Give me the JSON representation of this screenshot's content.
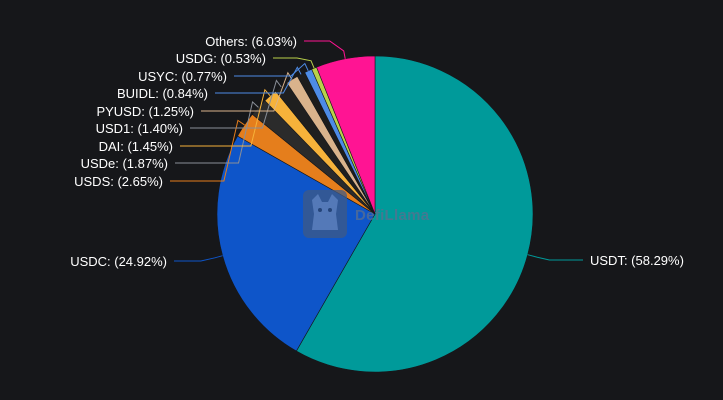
{
  "chart_data": {
    "type": "pie",
    "title": "",
    "slices": [
      {
        "name": "USDT",
        "value": 58.29,
        "color": "#009a9a"
      },
      {
        "name": "USDC",
        "value": 24.92,
        "color": "#0e55c9"
      },
      {
        "name": "USDS",
        "value": 2.65,
        "color": "#e57e1c"
      },
      {
        "name": "USDe",
        "value": 1.87,
        "color": "#2b2b2b"
      },
      {
        "name": "DAI",
        "value": 1.45,
        "color": "#f6b23a"
      },
      {
        "name": "USD1",
        "value": 1.4,
        "color": "#1f1f1f"
      },
      {
        "name": "PYUSD",
        "value": 1.25,
        "color": "#d9b38c"
      },
      {
        "name": "BUIDL",
        "value": 0.84,
        "color": "#1c1c1c"
      },
      {
        "name": "USYC",
        "value": 0.77,
        "color": "#4d8be6"
      },
      {
        "name": "USDG",
        "value": 0.53,
        "color": "#b9d14a"
      },
      {
        "name": "Others",
        "value": 6.03,
        "color": "#ff1493"
      }
    ],
    "labels": [
      "USDT: (58.29%)",
      "USDC: (24.92%)",
      "USDS: (2.65%)",
      "USDe: (1.87%)",
      "DAI: (1.45%)",
      "USD1: (1.40%)",
      "PYUSD: (1.25%)",
      "BUIDL: (0.84%)",
      "USYC: (0.77%)",
      "USDG: (0.53%)",
      "Others: (6.03%)"
    ],
    "leader_colors": [
      "#009a9a",
      "#0e55c9",
      "#e57e1c",
      "#8a8f98",
      "#f6b23a",
      "#8a8f98",
      "#d9b38c",
      "#4d8be6",
      "#4d8be6",
      "#b9d14a",
      "#ff1493"
    ]
  },
  "watermark": {
    "text": "DefiLlama",
    "icon": "llama-logo-icon"
  }
}
